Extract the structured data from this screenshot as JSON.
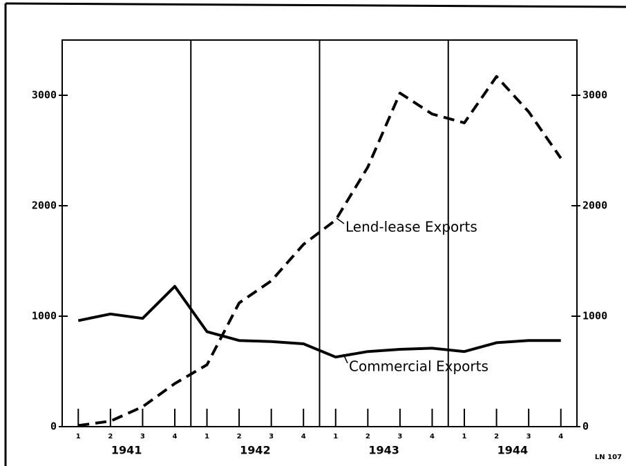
{
  "chart_data": {
    "type": "line",
    "categories": [
      "1",
      "2",
      "3",
      "4",
      "1",
      "2",
      "3",
      "4",
      "1",
      "2",
      "3",
      "4",
      "1",
      "2",
      "3",
      "4"
    ],
    "years": [
      "1941",
      "1942",
      "1943",
      "1944"
    ],
    "series": [
      {
        "name": "Commercial Exports",
        "color": "#000000",
        "line_style": "solid",
        "values": [
          960,
          1020,
          980,
          1270,
          860,
          780,
          770,
          750,
          630,
          680,
          700,
          710,
          680,
          760,
          780,
          780
        ]
      },
      {
        "name": "Lend-lease Exports",
        "color": "#000000",
        "line_style": "dashed",
        "values": [
          10,
          50,
          180,
          390,
          560,
          1120,
          1320,
          1650,
          1870,
          2350,
          3020,
          2830,
          2750,
          3170,
          2850,
          2430
        ]
      }
    ],
    "ylim": [
      0,
      3500
    ],
    "yticks": [
      0,
      1000,
      2000,
      3000
    ],
    "y2lim": [
      0,
      3500
    ],
    "y2ticks": [
      0,
      1000,
      2000,
      3000
    ],
    "annotation": "LN 107"
  }
}
